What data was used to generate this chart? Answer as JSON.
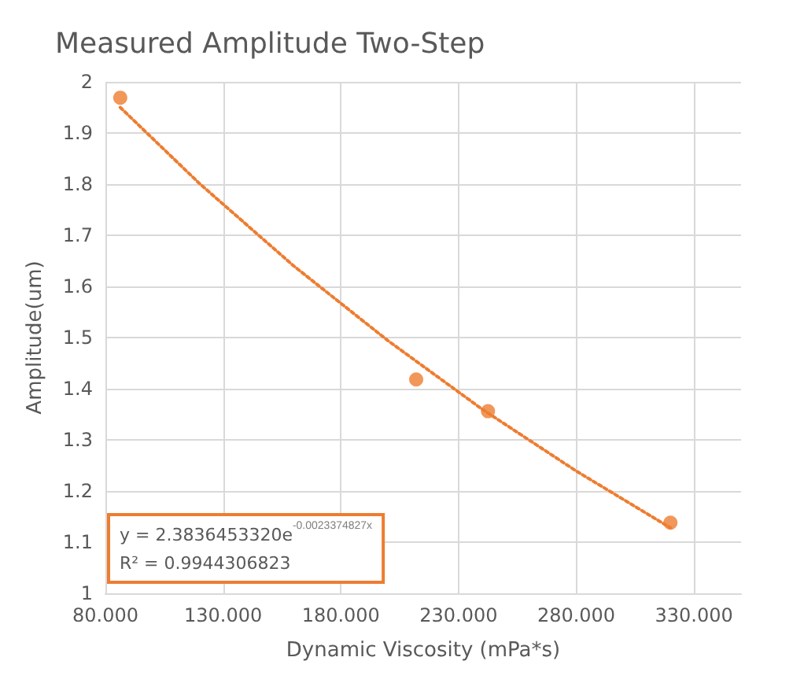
{
  "chart_data": {
    "type": "scatter",
    "title": "Measured Amplitude Two-Step",
    "xlabel": "Dynamic Viscosity (mPa*s)",
    "ylabel": "Amplitude(um)",
    "x": [
      86.3,
      212,
      242.5,
      320
    ],
    "series": [
      {
        "color": "#ed7d31",
        "values": [
          1.969,
          1.418,
          1.356,
          1.138
        ],
        "marker": "circle"
      },
      {
        "type": "line",
        "color": "#ed7d31",
        "x": [
          86.3,
          120,
          160,
          200,
          240,
          280,
          320
        ],
        "values": [
          1.95,
          1.801,
          1.64,
          1.494,
          1.36,
          1.239,
          1.128
        ],
        "marker": "none",
        "line_style": "dotted"
      }
    ],
    "xlim": [
      80,
      350
    ],
    "xticks": [
      {
        "value": 80,
        "label": "80.000"
      },
      {
        "value": 130,
        "label": "130.000"
      },
      {
        "value": 180,
        "label": "180.000"
      },
      {
        "value": 230,
        "label": "230.000"
      },
      {
        "value": 280,
        "label": "280.000"
      },
      {
        "value": 330,
        "label": "330.000"
      }
    ],
    "ylim": [
      1,
      2
    ],
    "yticks": [
      1,
      1.1,
      1.2,
      1.3,
      1.4,
      1.5,
      1.6,
      1.7,
      1.8,
      1.9,
      2
    ],
    "annotations": [
      "y = 2.3836453320e$^{-0.0023374827x}$",
      "R² = 0.9944306823"
    ],
    "grid": true
  }
}
